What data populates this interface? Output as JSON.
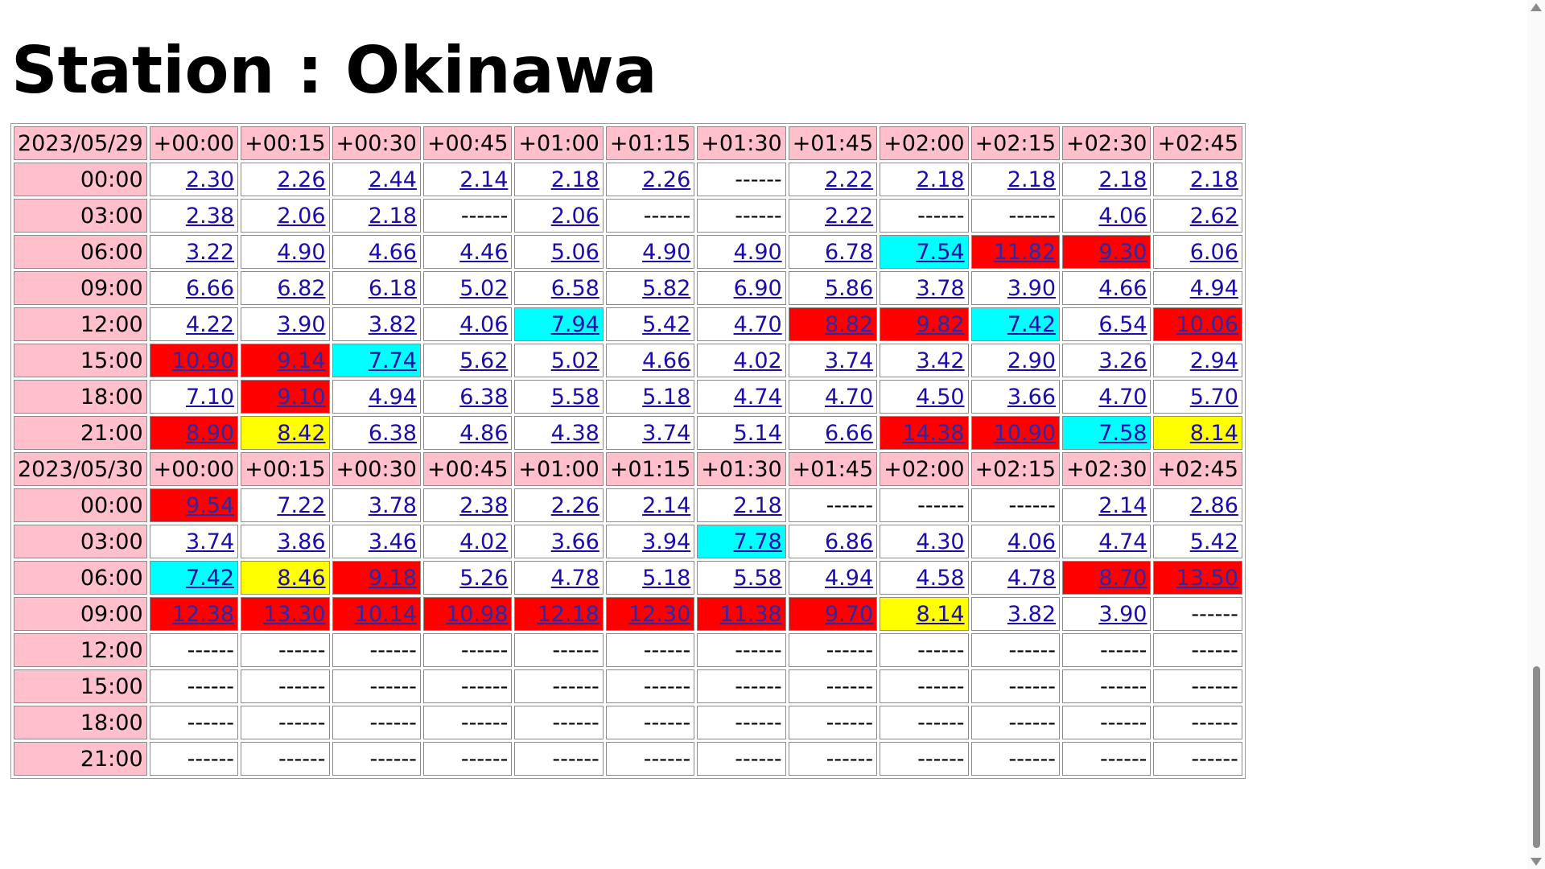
{
  "page": {
    "title": "Station : Okinawa"
  },
  "colors": {
    "header": "#ffc0cb",
    "cyan": "#00ffff",
    "red": "#ff0000",
    "yellow": "#ffff00",
    "link": "#1a0dab"
  },
  "offsets": [
    "+00:00",
    "+00:15",
    "+00:30",
    "+00:45",
    "+01:00",
    "+01:15",
    "+01:30",
    "+01:45",
    "+02:00",
    "+02:15",
    "+02:30",
    "+02:45"
  ],
  "days": [
    {
      "date": "2023/05/29",
      "rows": [
        {
          "time": "00:00",
          "values": [
            "2.30",
            "2.26",
            "2.44",
            "2.14",
            "2.18",
            "2.26",
            "------",
            "2.22",
            "2.18",
            "2.18",
            "2.18",
            "2.18"
          ],
          "levels": [
            "",
            "",
            "",
            "",
            "",
            "",
            "",
            "",
            "",
            "",
            "",
            ""
          ]
        },
        {
          "time": "03:00",
          "values": [
            "2.38",
            "2.06",
            "2.18",
            "------",
            "2.06",
            "------",
            "------",
            "2.22",
            "------",
            "------",
            "4.06",
            "2.62"
          ],
          "levels": [
            "",
            "",
            "",
            "",
            "",
            "",
            "",
            "",
            "",
            "",
            "",
            ""
          ]
        },
        {
          "time": "06:00",
          "values": [
            "3.22",
            "4.90",
            "4.66",
            "4.46",
            "5.06",
            "4.90",
            "4.90",
            "6.78",
            "7.54",
            "11.82",
            "9.30",
            "6.06"
          ],
          "levels": [
            "",
            "",
            "",
            "",
            "",
            "",
            "",
            "",
            "cyan",
            "red",
            "red",
            ""
          ]
        },
        {
          "time": "09:00",
          "values": [
            "6.66",
            "6.82",
            "6.18",
            "5.02",
            "6.58",
            "5.82",
            "6.90",
            "5.86",
            "3.78",
            "3.90",
            "4.66",
            "4.94"
          ],
          "levels": [
            "",
            "",
            "",
            "",
            "",
            "",
            "",
            "",
            "",
            "",
            "",
            ""
          ]
        },
        {
          "time": "12:00",
          "values": [
            "4.22",
            "3.90",
            "3.82",
            "4.06",
            "7.94",
            "5.42",
            "4.70",
            "8.82",
            "9.82",
            "7.42",
            "6.54",
            "10.06"
          ],
          "levels": [
            "",
            "",
            "",
            "",
            "cyan",
            "",
            "",
            "red",
            "red",
            "cyan",
            "",
            "red"
          ]
        },
        {
          "time": "15:00",
          "values": [
            "10.90",
            "9.14",
            "7.74",
            "5.62",
            "5.02",
            "4.66",
            "4.02",
            "3.74",
            "3.42",
            "2.90",
            "3.26",
            "2.94"
          ],
          "levels": [
            "red",
            "red",
            "cyan",
            "",
            "",
            "",
            "",
            "",
            "",
            "",
            "",
            ""
          ]
        },
        {
          "time": "18:00",
          "values": [
            "7.10",
            "9.10",
            "4.94",
            "6.38",
            "5.58",
            "5.18",
            "4.74",
            "4.70",
            "4.50",
            "3.66",
            "4.70",
            "5.70"
          ],
          "levels": [
            "",
            "red",
            "",
            "",
            "",
            "",
            "",
            "",
            "",
            "",
            "",
            ""
          ]
        },
        {
          "time": "21:00",
          "values": [
            "8.90",
            "8.42",
            "6.38",
            "4.86",
            "4.38",
            "3.74",
            "5.14",
            "6.66",
            "14.38",
            "10.90",
            "7.58",
            "8.14"
          ],
          "levels": [
            "red",
            "yellow",
            "",
            "",
            "",
            "",
            "",
            "",
            "red",
            "red",
            "cyan",
            "yellow"
          ]
        }
      ]
    },
    {
      "date": "2023/05/30",
      "rows": [
        {
          "time": "00:00",
          "values": [
            "9.54",
            "7.22",
            "3.78",
            "2.38",
            "2.26",
            "2.14",
            "2.18",
            "------",
            "------",
            "------",
            "2.14",
            "2.86"
          ],
          "levels": [
            "red",
            "",
            "",
            "",
            "",
            "",
            "",
            "",
            "",
            "",
            "",
            ""
          ]
        },
        {
          "time": "03:00",
          "values": [
            "3.74",
            "3.86",
            "3.46",
            "4.02",
            "3.66",
            "3.94",
            "7.78",
            "6.86",
            "4.30",
            "4.06",
            "4.74",
            "5.42"
          ],
          "levels": [
            "",
            "",
            "",
            "",
            "",
            "",
            "cyan",
            "",
            "",
            "",
            "",
            ""
          ]
        },
        {
          "time": "06:00",
          "values": [
            "7.42",
            "8.46",
            "9.18",
            "5.26",
            "4.78",
            "5.18",
            "5.58",
            "4.94",
            "4.58",
            "4.78",
            "8.70",
            "13.50"
          ],
          "levels": [
            "cyan",
            "yellow",
            "red",
            "",
            "",
            "",
            "",
            "",
            "",
            "",
            "red",
            "red"
          ]
        },
        {
          "time": "09:00",
          "values": [
            "12.38",
            "13.30",
            "10.14",
            "10.98",
            "12.18",
            "12.30",
            "11.38",
            "9.70",
            "8.14",
            "3.82",
            "3.90",
            "------"
          ],
          "levels": [
            "red",
            "red",
            "red",
            "red",
            "red",
            "red",
            "red",
            "red",
            "yellow",
            "",
            "",
            ""
          ]
        },
        {
          "time": "12:00",
          "values": [
            "------",
            "------",
            "------",
            "------",
            "------",
            "------",
            "------",
            "------",
            "------",
            "------",
            "------",
            "------"
          ],
          "levels": [
            "",
            "",
            "",
            "",
            "",
            "",
            "",
            "",
            "",
            "",
            "",
            ""
          ]
        },
        {
          "time": "15:00",
          "values": [
            "------",
            "------",
            "------",
            "------",
            "------",
            "------",
            "------",
            "------",
            "------",
            "------",
            "------",
            "------"
          ],
          "levels": [
            "",
            "",
            "",
            "",
            "",
            "",
            "",
            "",
            "",
            "",
            "",
            ""
          ]
        },
        {
          "time": "18:00",
          "values": [
            "------",
            "------",
            "------",
            "------",
            "------",
            "------",
            "------",
            "------",
            "------",
            "------",
            "------",
            "------"
          ],
          "levels": [
            "",
            "",
            "",
            "",
            "",
            "",
            "",
            "",
            "",
            "",
            "",
            ""
          ]
        },
        {
          "time": "21:00",
          "values": [
            "------",
            "------",
            "------",
            "------",
            "------",
            "------",
            "------",
            "------",
            "------",
            "------",
            "------",
            "------"
          ],
          "levels": [
            "",
            "",
            "",
            "",
            "",
            "",
            "",
            "",
            "",
            "",
            "",
            ""
          ]
        }
      ]
    }
  ]
}
